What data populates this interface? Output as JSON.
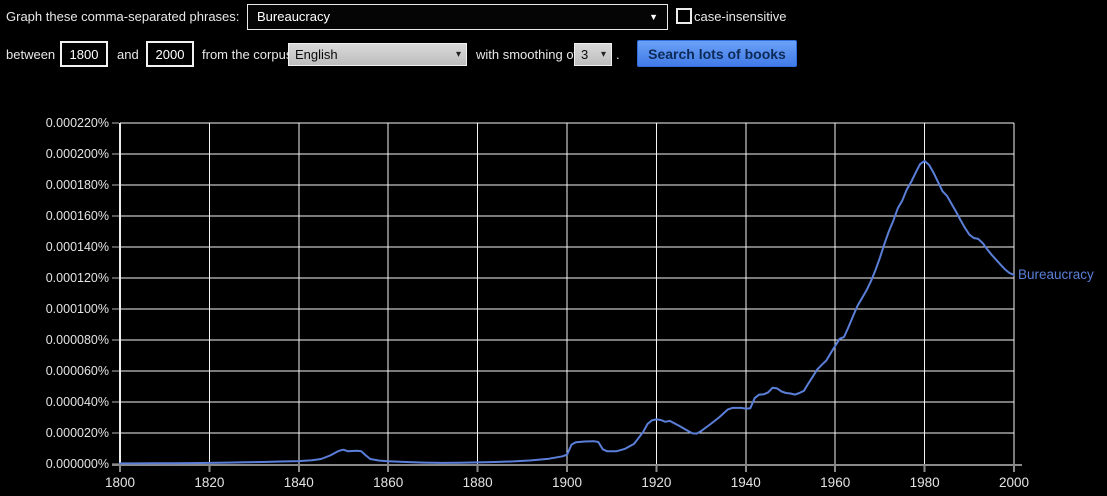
{
  "query_bar": {
    "phrase_label": "Graph these comma-separated phrases:",
    "phrase_value": "Bureaucracy",
    "case_insensitive_label": "case-insensitive",
    "case_insensitive_checked": false
  },
  "controls": {
    "between_label": "between",
    "year_from": "1800",
    "and_label": "and",
    "year_to": "2000",
    "corpus_label": "from the corpus",
    "corpus_value": "English",
    "smoothing_label": "with smoothing of",
    "smoothing_value": "3",
    "period": ".",
    "search_button_label": "Search lots of books"
  },
  "icons": {
    "combo_caret": "▼",
    "select_caret": "▾"
  },
  "colors": {
    "background": "#000000",
    "grid": "#f4f4f4",
    "axis_gray": "#8a8a8a",
    "tick_label": "#e4e4e4",
    "line_blue": "#5b7fd8",
    "button_blue": "#4d90fe"
  },
  "chart_data": {
    "type": "line",
    "title": "",
    "xlabel": "",
    "ylabel": "",
    "grid": true,
    "legend_position": "end-of-line",
    "xlim": [
      1800,
      2000
    ],
    "ylim": [
      0,
      0.00022
    ],
    "x_ticks": [
      1800,
      1820,
      1840,
      1860,
      1880,
      1900,
      1920,
      1940,
      1960,
      1980,
      2000
    ],
    "y_ticks": [
      "0.000000%",
      "0.000020%",
      "0.000040%",
      "0.000060%",
      "0.000080%",
      "0.000100%",
      "0.000120%",
      "0.000140%",
      "0.000160%",
      "0.000180%",
      "0.000200%",
      "0.000220%"
    ],
    "series": [
      {
        "name": "Bureaucracy",
        "color": "#5b7fd8",
        "points": [
          [
            1800,
            4e-07
          ],
          [
            1804,
            4e-07
          ],
          [
            1808,
            5e-07
          ],
          [
            1812,
            5e-07
          ],
          [
            1816,
            6e-07
          ],
          [
            1820,
            7e-07
          ],
          [
            1824,
            9e-07
          ],
          [
            1828,
            1.1e-06
          ],
          [
            1832,
            1.3e-06
          ],
          [
            1836,
            1.6e-06
          ],
          [
            1840,
            1.9e-06
          ],
          [
            1843,
            2.4e-06
          ],
          [
            1845,
            3.2e-06
          ],
          [
            1847,
            5.5e-06
          ],
          [
            1849,
            8.5e-06
          ],
          [
            1850,
            9.2e-06
          ],
          [
            1851,
            8.2e-06
          ],
          [
            1853,
            8.5e-06
          ],
          [
            1854,
            8.2e-06
          ],
          [
            1855,
            5.5e-06
          ],
          [
            1856,
            3.2e-06
          ],
          [
            1858,
            2.2e-06
          ],
          [
            1860,
            1.8e-06
          ],
          [
            1864,
            1.3e-06
          ],
          [
            1868,
            9e-07
          ],
          [
            1872,
            7e-07
          ],
          [
            1876,
            8e-07
          ],
          [
            1880,
            1e-06
          ],
          [
            1884,
            1.3e-06
          ],
          [
            1888,
            1.7e-06
          ],
          [
            1892,
            2.3e-06
          ],
          [
            1896,
            3.4e-06
          ],
          [
            1899,
            5e-06
          ],
          [
            1900,
            6e-06
          ],
          [
            1901,
            1.25e-05
          ],
          [
            1902,
            1.4e-05
          ],
          [
            1904,
            1.45e-05
          ],
          [
            1906,
            1.47e-05
          ],
          [
            1907,
            1.42e-05
          ],
          [
            1908,
            9.5e-06
          ],
          [
            1909,
            8.2e-06
          ],
          [
            1911,
            8.2e-06
          ],
          [
            1913,
            9.8e-06
          ],
          [
            1915,
            1.3e-05
          ],
          [
            1917,
            2.05e-05
          ],
          [
            1918,
            2.58e-05
          ],
          [
            1919,
            2.82e-05
          ],
          [
            1920,
            2.88e-05
          ],
          [
            1921,
            2.84e-05
          ],
          [
            1922,
            2.72e-05
          ],
          [
            1923,
            2.78e-05
          ],
          [
            1925,
            2.48e-05
          ],
          [
            1927,
            2.15e-05
          ],
          [
            1928,
            1.98e-05
          ],
          [
            1929,
            1.96e-05
          ],
          [
            1930,
            2.12e-05
          ],
          [
            1932,
            2.55e-05
          ],
          [
            1934,
            3e-05
          ],
          [
            1936,
            3.52e-05
          ],
          [
            1937,
            3.62e-05
          ],
          [
            1939,
            3.62e-05
          ],
          [
            1940,
            3.57e-05
          ],
          [
            1941,
            3.6e-05
          ],
          [
            1942,
            4.25e-05
          ],
          [
            1943,
            4.48e-05
          ],
          [
            1944,
            4.5e-05
          ],
          [
            1945,
            4.62e-05
          ],
          [
            1946,
            4.92e-05
          ],
          [
            1947,
            4.88e-05
          ],
          [
            1948,
            4.68e-05
          ],
          [
            1949,
            4.58e-05
          ],
          [
            1950,
            4.55e-05
          ],
          [
            1951,
            4.48e-05
          ],
          [
            1952,
            4.58e-05
          ],
          [
            1953,
            4.72e-05
          ],
          [
            1954,
            5.2e-05
          ],
          [
            1955,
            5.65e-05
          ],
          [
            1956,
            6.1e-05
          ],
          [
            1957,
            6.4e-05
          ],
          [
            1958,
            6.68e-05
          ],
          [
            1959,
            7.15e-05
          ],
          [
            1960,
            7.62e-05
          ],
          [
            1961,
            8.08e-05
          ],
          [
            1962,
            8.2e-05
          ],
          [
            1963,
            8.85e-05
          ],
          [
            1964,
            9.55e-05
          ],
          [
            1965,
            0.000102
          ],
          [
            1966,
            0.000107
          ],
          [
            1967,
            0.000112
          ],
          [
            1968,
            0.000118
          ],
          [
            1969,
            0.000125
          ],
          [
            1970,
            0.000133
          ],
          [
            1971,
            0.000142
          ],
          [
            1972,
            0.00015
          ],
          [
            1973,
            0.000157
          ],
          [
            1974,
            0.000165
          ],
          [
            1975,
            0.00017
          ],
          [
            1976,
            0.000177
          ],
          [
            1977,
            0.000182
          ],
          [
            1978,
            0.000188
          ],
          [
            1979,
            0.0001935
          ],
          [
            1980,
            0.0001955
          ],
          [
            1981,
            0.000193
          ],
          [
            1982,
            0.000188
          ],
          [
            1983,
            0.000182
          ],
          [
            1984,
            0.000176
          ],
          [
            1985,
            0.000173
          ],
          [
            1986,
            0.000168
          ],
          [
            1987,
            0.000163
          ],
          [
            1988,
            0.0001575
          ],
          [
            1989,
            0.0001525
          ],
          [
            1990,
            0.000148
          ],
          [
            1991,
            0.0001458
          ],
          [
            1992,
            0.0001452
          ],
          [
            1993,
            0.0001425
          ],
          [
            1994,
            0.0001385
          ],
          [
            1995,
            0.000135
          ],
          [
            1996,
            0.0001318
          ],
          [
            1997,
            0.0001286
          ],
          [
            1998,
            0.0001255
          ],
          [
            1999,
            0.0001232
          ],
          [
            2000,
            0.000122
          ]
        ]
      }
    ]
  }
}
